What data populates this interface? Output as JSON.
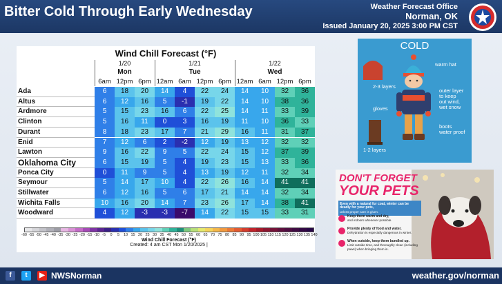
{
  "header": {
    "title": "Bitter Cold Through Early Wednesday",
    "office_line1": "Weather Forecast Office",
    "office_line2": "Norman, OK",
    "issued": "Issued January 20, 2025 3:00 PM CST"
  },
  "table": {
    "title": "Wind Chill Forecast (°F)",
    "days": [
      {
        "date": "1/20",
        "day": "Mon"
      },
      {
        "date": "1/21",
        "day": "Tue"
      },
      {
        "date": "1/22",
        "day": "Wed"
      }
    ],
    "hours": [
      "6am",
      "12pm",
      "6pm",
      "12am",
      "6am",
      "12pm",
      "6pm",
      "12am",
      "6am",
      "12pm",
      "6pm"
    ],
    "rows": [
      {
        "city": "Ada",
        "values": [
          6,
          18,
          20,
          14,
          4,
          22,
          24,
          14,
          10,
          32,
          36
        ]
      },
      {
        "city": "Altus",
        "values": [
          6,
          12,
          16,
          5,
          -1,
          19,
          22,
          14,
          10,
          38,
          36
        ]
      },
      {
        "city": "Ardmore",
        "values": [
          5,
          15,
          23,
          16,
          6,
          22,
          25,
          14,
          11,
          33,
          39
        ]
      },
      {
        "city": "Clinton",
        "values": [
          5,
          16,
          11,
          0,
          3,
          16,
          19,
          11,
          10,
          36,
          33
        ]
      },
      {
        "city": "Durant",
        "values": [
          8,
          18,
          23,
          17,
          7,
          21,
          29,
          16,
          11,
          31,
          37
        ]
      },
      {
        "city": "Enid",
        "values": [
          7,
          12,
          6,
          2,
          -2,
          12,
          19,
          13,
          12,
          32,
          32
        ]
      },
      {
        "city": "Lawton",
        "values": [
          9,
          16,
          22,
          9,
          5,
          22,
          24,
          15,
          12,
          37,
          39
        ]
      },
      {
        "city": "Oklahoma City",
        "values": [
          6,
          15,
          19,
          5,
          4,
          19,
          23,
          15,
          13,
          33,
          36
        ]
      },
      {
        "city": "Ponca City",
        "values": [
          0,
          11,
          9,
          5,
          4,
          13,
          19,
          12,
          11,
          32,
          34
        ]
      },
      {
        "city": "Seymour",
        "values": [
          5,
          14,
          17,
          10,
          4,
          22,
          26,
          16,
          14,
          41,
          41
        ]
      },
      {
        "city": "Stillwater",
        "values": [
          6,
          12,
          16,
          5,
          6,
          17,
          21,
          14,
          14,
          32,
          34
        ]
      },
      {
        "city": "Wichita Falls",
        "values": [
          10,
          16,
          20,
          14,
          7,
          23,
          26,
          17,
          14,
          38,
          41
        ]
      },
      {
        "city": "Woodward",
        "values": [
          4,
          12,
          -3,
          -3,
          -7,
          14,
          22,
          15,
          15,
          33,
          31
        ]
      }
    ],
    "legend_ticks": [
      "-60",
      "-55",
      "-50",
      "-45",
      "-40",
      "-35",
      "-30",
      "-25",
      "-20",
      "-15",
      "-10",
      "-5",
      "0",
      "5",
      "10",
      "15",
      "20",
      "25",
      "30",
      "35",
      "40",
      "45",
      "50",
      "55",
      "60",
      "65",
      "70",
      "75",
      "80",
      "85",
      "90",
      "95",
      "100",
      "105",
      "110",
      "115",
      "120",
      "125",
      "130",
      "135",
      "140"
    ],
    "legend_title": "Wind Chill Forecast (°F)",
    "created": "Created: 4 am CST Mon 1/20/2025  |"
  },
  "cold_graphic": {
    "title": "COLD",
    "labels": {
      "hat": "warm hat",
      "layers_top": "2-3 layers",
      "outer": "outer layer\nto keep\nout wind,\nwet snow",
      "gloves": "gloves",
      "boots": "boots\nwater proof",
      "layers_bottom": "1-2 layers"
    }
  },
  "pets_graphic": {
    "heading1": "DON'T FORGET",
    "heading2": "YOUR PETS",
    "tips": [
      {
        "bold": "Even with a natural fur coat, winter can be deadly for your pets,",
        "text": "unless proper care is given."
      },
      {
        "bold": "Keep them warm and dry,",
        "text": "and indoors whenever possible."
      },
      {
        "bold": "Provide plenty of food and water.",
        "text": "Dehydration is especially dangerous in winter."
      },
      {
        "bold": "When outside, keep them bundled up.",
        "text": "Limit outside time, and thoroughly clean (including paws) when bringing them in."
      }
    ]
  },
  "footer": {
    "handle": "NWSNorman",
    "website": "weather.gov/norman"
  },
  "colors": {
    "header_bg": "#1f3f72",
    "pets_pink": "#e8246a",
    "cold_blue": "#3a9bd0"
  }
}
